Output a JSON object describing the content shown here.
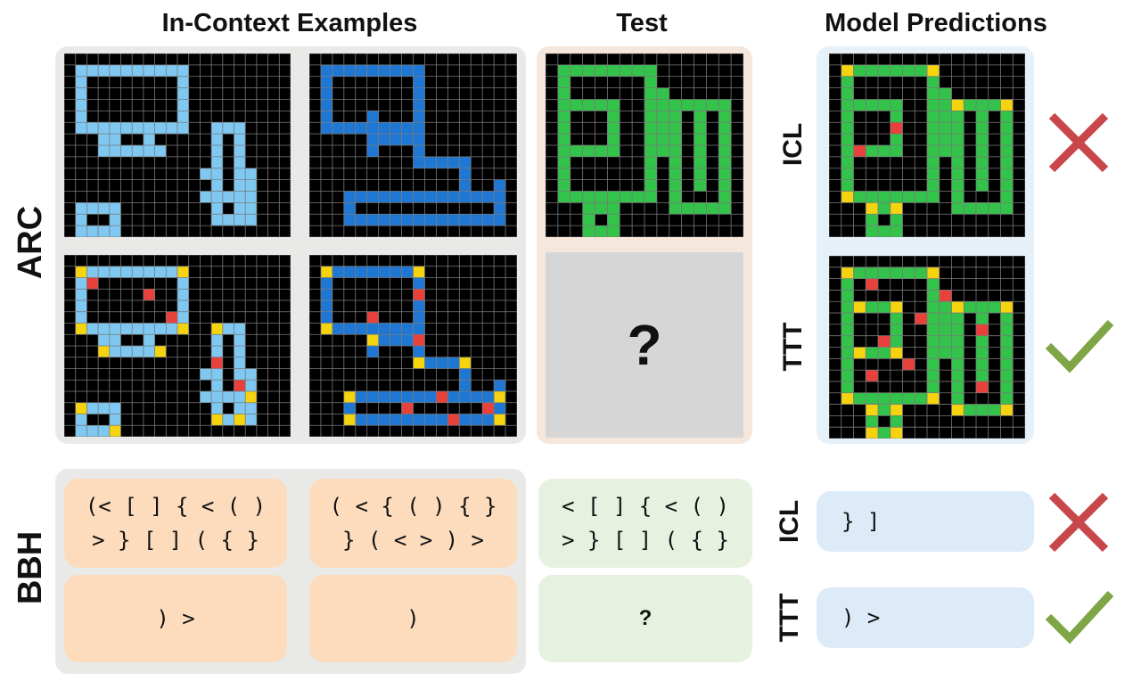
{
  "headers": {
    "in_context": "In-Context Examples",
    "test": "Test",
    "predictions": "Model Predictions"
  },
  "rows": {
    "arc": "ARC",
    "bbh": "BBH"
  },
  "arc": {
    "test_query": "?",
    "predictions": [
      {
        "label": "ICL",
        "result": "incorrect"
      },
      {
        "label": "TTT",
        "result": "correct"
      }
    ]
  },
  "bbh": {
    "examples": [
      {
        "input": "(< [ ] { < ( )\n> } [ ] ( { }",
        "output": ") >"
      },
      {
        "input": "( < { ( ) { }\n} ( < > ) >",
        "output": ")"
      }
    ],
    "test_input": "< [ ] { < ( )\n> } [ ] ( { }",
    "test_query": "?",
    "predictions": [
      {
        "label": "ICL",
        "text": "} ]",
        "result": "incorrect"
      },
      {
        "label": "TTT",
        "text": ") >",
        "result": "correct"
      }
    ]
  },
  "colors": {
    "grid_background": "#000000",
    "grid_lines": "#7a7a7a",
    "light_blue": "#7ec8f2",
    "blue": "#1f77d4",
    "green": "#33c24a",
    "yellow": "#f5d30f",
    "red": "#e8403a",
    "cross": "#c8474b",
    "check": "#7ea646"
  }
}
